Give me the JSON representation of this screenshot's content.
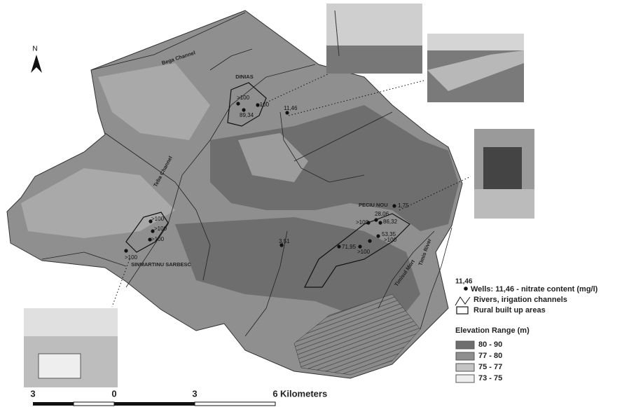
{
  "north": "N",
  "places": [
    "DINIAS",
    "PECIU NOU",
    "SINMARTINU SARBESC"
  ],
  "waters": [
    "Bega Channel",
    "Teba Channel",
    "Timisul Mort",
    "Timis River"
  ],
  "wells": [
    ">100",
    ">100",
    "89,34",
    "11,46",
    ">100",
    ">100",
    ">100",
    ">100",
    "1,75",
    "28,06",
    ">100",
    "86,32",
    "53,35",
    ">100",
    "71,95",
    ">100",
    "3,51"
  ],
  "legend": {
    "sample": "11,46",
    "wells": "Wells: 11,46 - nitrate content (mg/l)",
    "rivers": "Rivers, irigation channels",
    "built": "Rural built up areas",
    "elevation_title": "Elevation Range (m)",
    "ranges": [
      "80 - 90",
      "77 - 80",
      "75 - 77",
      "73 - 75"
    ]
  },
  "scale": {
    "ticks": [
      "3",
      "0",
      "3",
      "6"
    ],
    "unit": "Kilometers"
  }
}
